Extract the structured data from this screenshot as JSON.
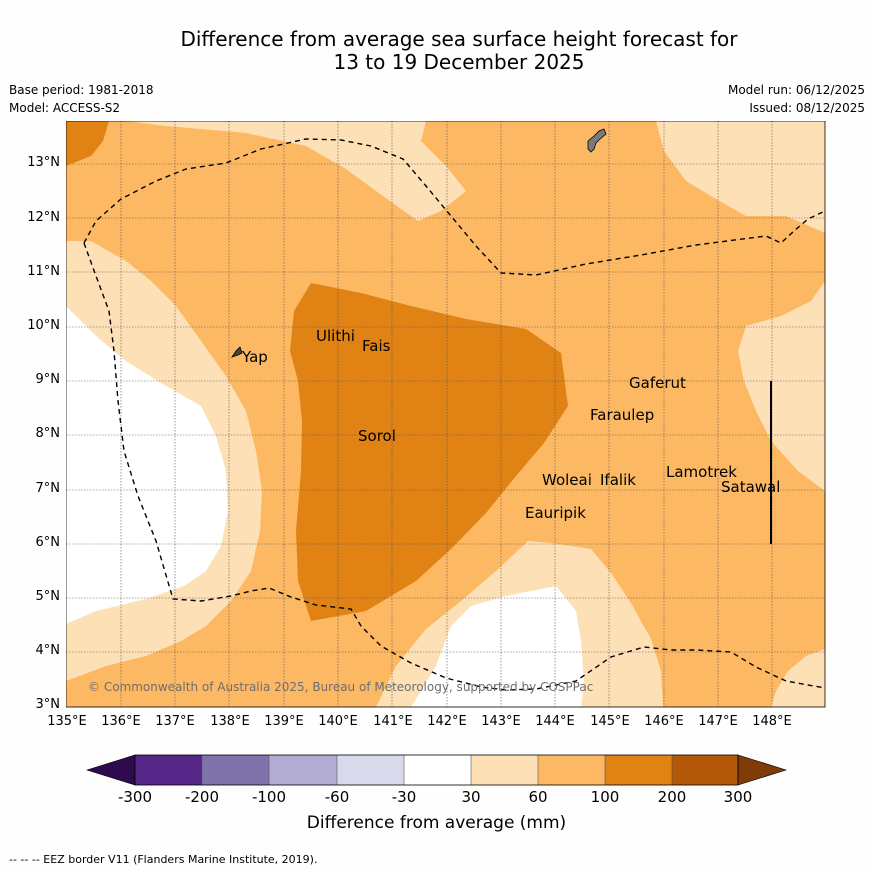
{
  "title": {
    "line1": "Difference from average sea surface height forecast for",
    "line2": "13 to 19 December 2025"
  },
  "meta": {
    "base_period": "Base period: 1981-2018",
    "model": "Model: ACCESS-S2",
    "model_run": "Model run: 06/12/2025",
    "issued": "Issued: 08/12/2025"
  },
  "map": {
    "lat_ticks": [
      "3°N",
      "4°N",
      "5°N",
      "6°N",
      "7°N",
      "8°N",
      "9°N",
      "10°N",
      "11°N",
      "12°N",
      "13°N"
    ],
    "lon_ticks": [
      "135°E",
      "136°E",
      "137°E",
      "138°E",
      "139°E",
      "140°E",
      "141°E",
      "142°E",
      "143°E",
      "144°E",
      "145°E",
      "146°E",
      "147°E",
      "148°E"
    ],
    "place_labels": [
      "Yap",
      "Ulithi",
      "Fais",
      "Sorol",
      "Gaferut",
      "Faraulep",
      "Woleai",
      "Ifalik",
      "Lamotrek",
      "Satawal",
      "Eauripik"
    ],
    "copyright": "© Commonwealth of Australia 2025, Bureau of Meteorology, supported by COSPPac"
  },
  "colorbar": {
    "ticks": [
      "-300",
      "-200",
      "-100",
      "-60",
      "-30",
      "30",
      "60",
      "100",
      "200",
      "300"
    ],
    "colors": {
      "below_-300": "#2e0b4e",
      "-300_-200": "#542788",
      "-200_-100": "#8073ac",
      "-100_-60": "#b2abd2",
      "-60_-30": "#d8daeb",
      "-30_30": "#ffffff",
      "30_60": "#fee0b6",
      "60_100": "#fdb863",
      "100_200": "#e08214",
      "200_300": "#b35806",
      "above_300": "#7f3b08"
    },
    "label": "Difference from average (mm)"
  },
  "footer": "--  --  -- EEZ border V11 (Flanders Marine Institute, 2019)."
}
